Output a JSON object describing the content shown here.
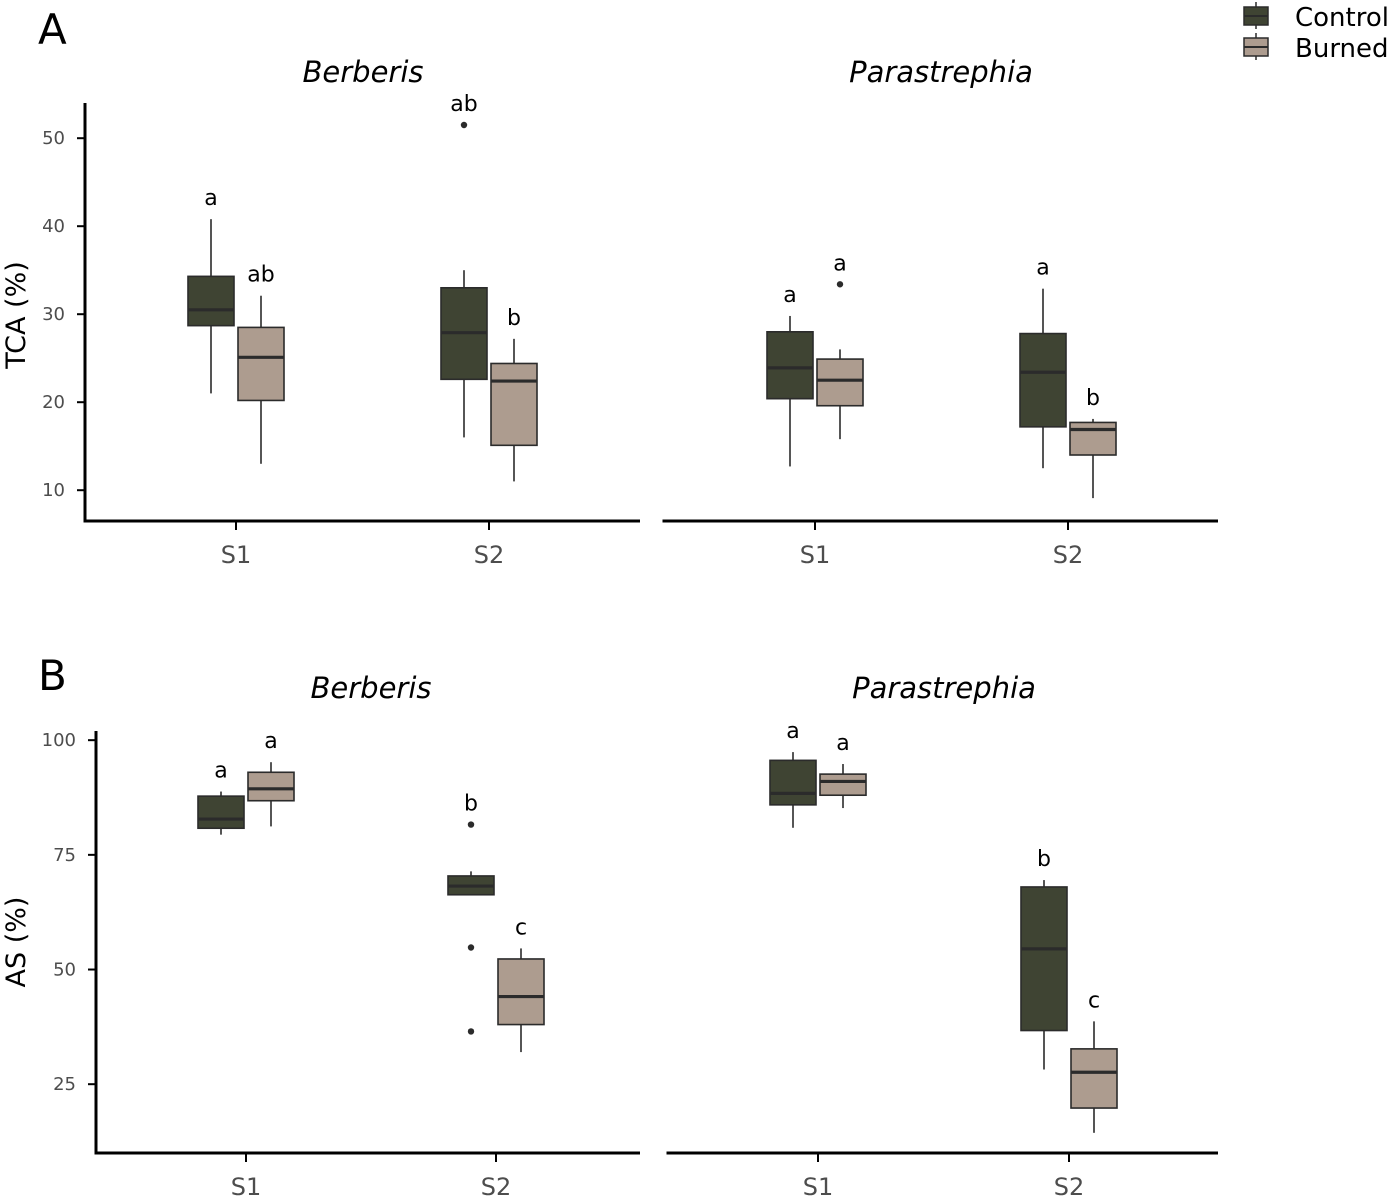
{
  "legend": {
    "items": [
      {
        "label": "Control",
        "color": "#3f4433"
      },
      {
        "label": "Burned",
        "color": "#ad9c8f"
      }
    ]
  },
  "colors": {
    "control": "#3f4433",
    "burned": "#ad9c8f",
    "stroke": "#2b2b2b",
    "axis": "#000000"
  },
  "chart_data": [
    {
      "panel": "A",
      "type": "box",
      "ylabel": "TCA (%)",
      "ylim": [
        6.5,
        54
      ],
      "yticks": [
        10,
        20,
        30,
        40,
        50
      ],
      "categories": [
        "S1",
        "S2"
      ],
      "facets": [
        {
          "title": "Berberis",
          "boxes": [
            {
              "category": "S1",
              "group": "Control",
              "min": 21,
              "q1": 28.7,
              "median": 30.5,
              "q3": 34.3,
              "max": 40.8,
              "outliers": [],
              "label": "a"
            },
            {
              "category": "S1",
              "group": "Burned",
              "min": 13,
              "q1": 20.2,
              "median": 25.1,
              "q3": 28.5,
              "max": 32.1,
              "outliers": [],
              "label": "ab"
            },
            {
              "category": "S2",
              "group": "Control",
              "min": 16,
              "q1": 22.6,
              "median": 27.9,
              "q3": 33,
              "max": 35,
              "outliers": [
                51.5
              ],
              "label": "ab"
            },
            {
              "category": "S2",
              "group": "Burned",
              "min": 11,
              "q1": 15.1,
              "median": 22.4,
              "q3": 24.4,
              "max": 27.2,
              "outliers": [],
              "label": "b"
            }
          ]
        },
        {
          "title": "Parastrephia",
          "boxes": [
            {
              "category": "S1",
              "group": "Control",
              "min": 12.7,
              "q1": 20.4,
              "median": 23.9,
              "q3": 28,
              "max": 29.8,
              "outliers": [],
              "label": "a"
            },
            {
              "category": "S1",
              "group": "Burned",
              "min": 15.8,
              "q1": 19.6,
              "median": 22.5,
              "q3": 24.9,
              "max": 26,
              "outliers": [
                33.4
              ],
              "label": "a"
            },
            {
              "category": "S2",
              "group": "Control",
              "min": 12.5,
              "q1": 17.2,
              "median": 23.4,
              "q3": 27.8,
              "max": 32.9,
              "outliers": [],
              "label": "a"
            },
            {
              "category": "S2",
              "group": "Burned",
              "min": 9.1,
              "q1": 14,
              "median": 16.9,
              "q3": 17.7,
              "max": 18.1,
              "outliers": [],
              "label": "b"
            }
          ]
        }
      ]
    },
    {
      "panel": "B",
      "type": "box",
      "ylabel": "AS (%)",
      "ylim": [
        10,
        102
      ],
      "yticks": [
        25,
        50,
        75,
        100
      ],
      "categories": [
        "S1",
        "S2"
      ],
      "facets": [
        {
          "title": "Berberis",
          "boxes": [
            {
              "category": "S1",
              "group": "Control",
              "min": 79.4,
              "q1": 80.8,
              "median": 82.8,
              "q3": 87.8,
              "max": 88.8,
              "outliers": [],
              "label": "a"
            },
            {
              "category": "S1",
              "group": "Burned",
              "min": 81.2,
              "q1": 86.8,
              "median": 89.4,
              "q3": 93,
              "max": 95.2,
              "outliers": [],
              "label": "a"
            },
            {
              "category": "S2",
              "group": "Control",
              "min": 66.3,
              "q1": 66.3,
              "median": 68.2,
              "q3": 70.4,
              "max": 71.4,
              "outliers": [
                81.6,
                54.8,
                36.5
              ],
              "label": "b"
            },
            {
              "category": "S2",
              "group": "Burned",
              "min": 32,
              "q1": 38,
              "median": 44.1,
              "q3": 52.3,
              "max": 54.6,
              "outliers": [],
              "label": "c"
            }
          ]
        },
        {
          "title": "Parastrephia",
          "boxes": [
            {
              "category": "S1",
              "group": "Control",
              "min": 80.9,
              "q1": 85.9,
              "median": 88.4,
              "q3": 95.6,
              "max": 97.4,
              "outliers": [],
              "label": "a"
            },
            {
              "category": "S1",
              "group": "Burned",
              "min": 85.2,
              "q1": 88,
              "median": 91,
              "q3": 92.6,
              "max": 94.8,
              "outliers": [],
              "label": "a"
            },
            {
              "category": "S2",
              "group": "Control",
              "min": 28.2,
              "q1": 36.7,
              "median": 54.5,
              "q3": 68,
              "max": 69.5,
              "outliers": [],
              "label": "b"
            },
            {
              "category": "S2",
              "group": "Burned",
              "min": 14.4,
              "q1": 19.8,
              "median": 27.6,
              "q3": 32.7,
              "max": 38.7,
              "outliers": [],
              "label": "c"
            }
          ]
        }
      ]
    }
  ]
}
